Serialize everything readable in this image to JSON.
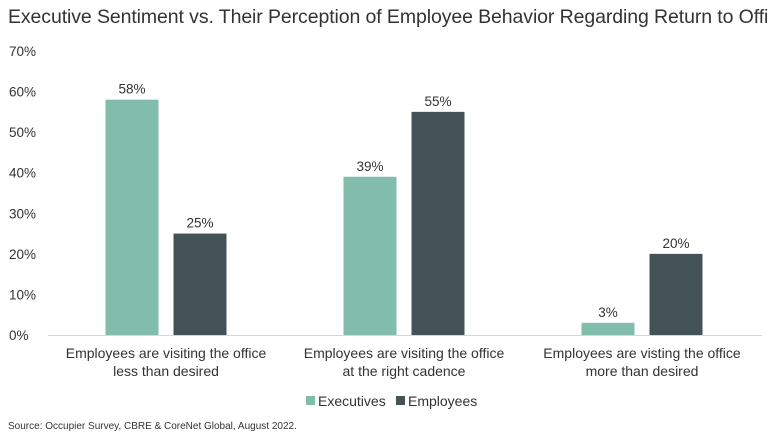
{
  "chart_data": {
    "type": "bar",
    "title": "Executive Sentiment vs. Their Perception of Employee Behavior Regarding Return to Office",
    "categories": [
      [
        "Employees are visiting the office",
        "less than desired"
      ],
      [
        "Employees are visiting the office",
        "at the right cadence"
      ],
      [
        "Employees are visting the office",
        "more than desired"
      ]
    ],
    "series": [
      {
        "name": "Executives",
        "values": [
          58,
          39,
          3
        ],
        "labels": [
          "58%",
          "39%",
          "3%"
        ],
        "color": "#82bcab"
      },
      {
        "name": "Employees",
        "values": [
          25,
          55,
          20
        ],
        "labels": [
          "25%",
          "55%",
          "20%"
        ],
        "color": "#435254"
      }
    ],
    "ylim": [
      0,
      70
    ],
    "yticks": [
      0,
      10,
      20,
      30,
      40,
      50,
      60,
      70
    ],
    "ytick_labels": [
      "0%",
      "10%",
      "20%",
      "30%",
      "40%",
      "50%",
      "60%",
      "70%"
    ],
    "grid": false,
    "legend": "bottom-center",
    "source": "Source: Occupier Survey, CBRE & CoreNet Global, August 2022."
  }
}
